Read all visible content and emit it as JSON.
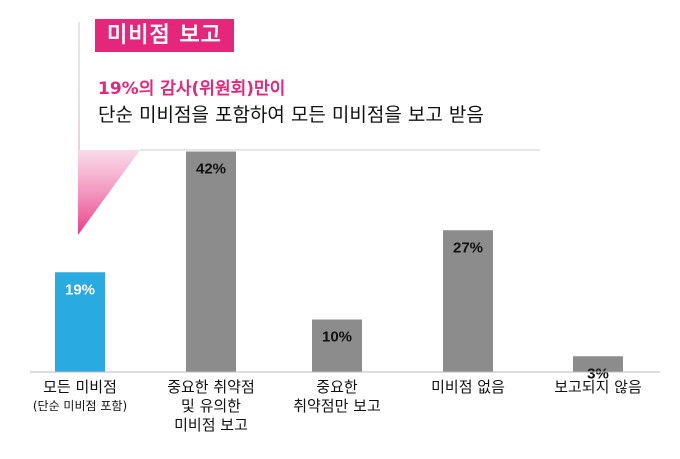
{
  "header": {
    "tag": "미비점 보고",
    "highlight": "19%의 감사(위원회)만이",
    "description": "단순 미비점을 포함하여 모든 미비점을 보고 받음"
  },
  "colors": {
    "accent": "#e5267a",
    "highlight_bar": "#29abe2",
    "bar": "#8c8c8c"
  },
  "chart_data": {
    "type": "bar",
    "title": "",
    "xlabel": "",
    "ylabel": "",
    "ylim": [
      0,
      45
    ],
    "categories": [
      "모든 미비점 (단순 미비점 포함)",
      "중요한 취약점 및 유의한 미비점 보고",
      "중요한 취약점만 보고",
      "미비점 없음",
      "보고되지 않음"
    ],
    "values": [
      19,
      42,
      10,
      27,
      3
    ],
    "value_labels": [
      "19%",
      "42%",
      "10%",
      "27%",
      "3%"
    ],
    "highlight_index": 0
  },
  "labels": [
    {
      "lines": [
        "모든 미비점"
      ],
      "sub": "(단순 미비점 포함)"
    },
    {
      "lines": [
        "중요한 취약점",
        "및 유의한",
        "미비점 보고"
      ],
      "sub": ""
    },
    {
      "lines": [
        "중요한",
        "취약점만 보고"
      ],
      "sub": ""
    },
    {
      "lines": [
        "미비점 없음"
      ],
      "sub": ""
    },
    {
      "lines": [
        "보고되지 않음"
      ],
      "sub": ""
    }
  ]
}
